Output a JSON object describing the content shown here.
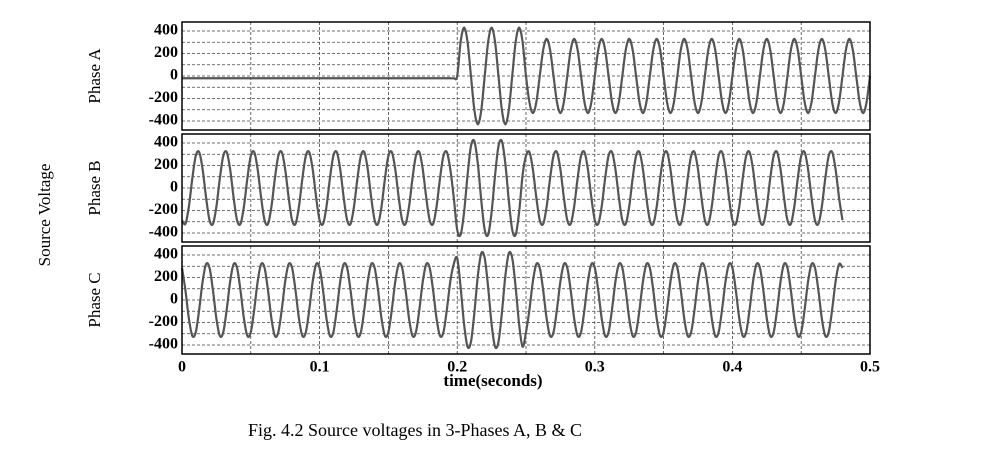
{
  "chart_data": {
    "type": "line",
    "ylabel": "Source Voltage",
    "xlabel": "time(seconds)",
    "caption": "Fig.  4.2 Source voltages in 3-Phases A, B & C",
    "xlim": [
      0,
      0.5
    ],
    "xticks": [
      0,
      0.1,
      0.2,
      0.3,
      0.4,
      0.5
    ],
    "x_minor_ticks": [
      0.05,
      0.15,
      0.25,
      0.35,
      0.45
    ],
    "grid": true,
    "color": "#555555",
    "x": [
      0,
      0.0025,
      0.005,
      0.0075,
      0.01,
      0.0125,
      0.015,
      0.0175,
      0.02,
      0.0225,
      0.025,
      0.0275,
      0.03,
      0.0325,
      0.035,
      0.0375,
      0.04,
      0.0425,
      0.045,
      0.0475,
      0.05,
      0.0525,
      0.055,
      0.0575,
      0.06,
      0.0625,
      0.065,
      0.0675,
      0.07,
      0.0725,
      0.075,
      0.0775,
      0.08,
      0.0825,
      0.085,
      0.0875,
      0.09,
      0.0925,
      0.095,
      0.0975,
      0.1,
      0.1025,
      0.105,
      0.1075,
      0.11,
      0.1125,
      0.115,
      0.1175,
      0.12,
      0.1225,
      0.125,
      0.1275,
      0.13,
      0.1325,
      0.135,
      0.1375,
      0.14,
      0.1425,
      0.145,
      0.1475,
      0.15,
      0.1525,
      0.155,
      0.1575,
      0.16,
      0.1625,
      0.165,
      0.1675,
      0.17,
      0.1725,
      0.175,
      0.1775,
      0.18,
      0.1825,
      0.185,
      0.1875,
      0.19,
      0.1925,
      0.195,
      0.1975,
      0.2,
      0.2025,
      0.205,
      0.2075,
      0.21,
      0.2125,
      0.215,
      0.2175,
      0.22,
      0.2225,
      0.225,
      0.2275,
      0.23,
      0.2325,
      0.235,
      0.2375,
      0.24,
      0.2425,
      0.245,
      0.2475,
      0.25,
      0.2525,
      0.255,
      0.2575,
      0.26,
      0.2625,
      0.265,
      0.2675,
      0.27,
      0.2725,
      0.275,
      0.2775,
      0.28,
      0.2825,
      0.285,
      0.2875,
      0.29,
      0.2925,
      0.295,
      0.2975,
      0.3,
      0.3025,
      0.305,
      0.3075,
      0.31,
      0.3125,
      0.315,
      0.3175,
      0.32,
      0.3225,
      0.325,
      0.3275,
      0.33,
      0.3325,
      0.335,
      0.3375,
      0.34,
      0.3425,
      0.345,
      0.3475,
      0.35,
      0.3525,
      0.355,
      0.3575,
      0.36,
      0.3625,
      0.365,
      0.3675,
      0.37,
      0.3725,
      0.375,
      0.3775,
      0.38,
      0.3825,
      0.385,
      0.3875,
      0.39,
      0.3925,
      0.395,
      0.3975,
      0.4,
      0.4025,
      0.405,
      0.4075,
      0.41,
      0.4125,
      0.415,
      0.4175,
      0.42,
      0.4225,
      0.425,
      0.4275,
      0.43,
      0.4325,
      0.435,
      0.4375,
      0.44,
      0.4425,
      0.445,
      0.4475,
      0.45,
      0.4525,
      0.455,
      0.4575,
      0.46,
      0.4625,
      0.465,
      0.4675,
      0.47,
      0.4725,
      0.475,
      0.4775,
      0.48,
      0.4825,
      0.485,
      0.4875,
      0.49,
      0.4925,
      0.495,
      0.4975,
      0.5
    ],
    "panels": [
      {
        "ylabel": "Phase A",
        "ylim": [
          -480,
          480
        ],
        "yticks": [
          -400,
          -200,
          0,
          200,
          400
        ],
        "y_minor_ticks": [
          -300,
          -100,
          100,
          300
        ],
        "values": [
          -20,
          -20,
          -20,
          -20,
          -20,
          -20,
          -20,
          -20,
          -20,
          -20,
          -20,
          -20,
          -20,
          -20,
          -20,
          -20,
          -20,
          -20,
          -20,
          -20,
          -20,
          -20,
          -20,
          -20,
          -20,
          -20,
          -20,
          -20,
          -20,
          -20,
          -20,
          -20,
          -20,
          -20,
          -20,
          -20,
          -20,
          -20,
          -20,
          -20,
          -20,
          -20,
          -20,
          -20,
          -20,
          -20,
          -20,
          -20,
          -20,
          -20,
          -20,
          -20,
          -20,
          -20,
          -20,
          -20,
          -20,
          -20,
          -20,
          -20,
          -20,
          -20,
          -20,
          -20,
          -20,
          -20,
          -20,
          -20,
          -20,
          -20,
          -20,
          -20,
          -20,
          -20,
          -20,
          -20,
          -20,
          -20,
          -20,
          -20,
          0,
          304,
          430,
          304,
          0,
          -304,
          -430,
          -304,
          0,
          304,
          430,
          304,
          0,
          -304,
          -430,
          -304,
          0,
          304,
          430,
          304,
          0,
          -233,
          -330,
          -233,
          0,
          233,
          330,
          233,
          0,
          -233,
          -330,
          -233,
          0,
          233,
          330,
          233,
          0,
          -233,
          -330,
          -233,
          0,
          233,
          330,
          233,
          0,
          -233,
          -330,
          -233,
          0,
          233,
          330,
          233,
          0,
          -233,
          -330,
          -233,
          0,
          233,
          330,
          233,
          0,
          -233,
          -330,
          -233,
          0,
          233,
          330,
          233,
          0,
          -233,
          -330,
          -233,
          0,
          233,
          330,
          233,
          0,
          -233,
          -330,
          -233,
          0,
          233,
          330,
          233,
          0,
          -233,
          -330,
          -233,
          0,
          233,
          330,
          233,
          0,
          -233,
          -330,
          -233,
          0,
          233,
          330,
          233,
          0,
          -233,
          -330,
          -233,
          0,
          233,
          330,
          233,
          0,
          -233,
          -330,
          -233,
          0,
          233,
          330,
          233,
          0,
          -233,
          -330,
          -233,
          0
        ]
      },
      {
        "ylabel": "Phase B",
        "ylim": [
          -480,
          480
        ],
        "yticks": [
          -400,
          -200,
          0,
          200,
          400
        ],
        "y_minor_ticks": [
          -300,
          -100,
          100,
          300
        ],
        "values": [
          -286,
          -319,
          -165,
          85,
          286,
          319,
          165,
          -85,
          -286,
          -319,
          -165,
          85,
          286,
          319,
          165,
          -85,
          -286,
          -319,
          -165,
          85,
          286,
          319,
          165,
          -85,
          -286,
          -319,
          -165,
          85,
          286,
          319,
          165,
          -85,
          -286,
          -319,
          -165,
          85,
          286,
          319,
          165,
          -85,
          -286,
          -319,
          -165,
          85,
          286,
          319,
          165,
          -85,
          -286,
          -319,
          -165,
          85,
          286,
          319,
          165,
          -85,
          -286,
          -319,
          -165,
          85,
          286,
          319,
          165,
          -85,
          -286,
          -319,
          -165,
          85,
          286,
          319,
          165,
          -85,
          -286,
          -319,
          -165,
          85,
          286,
          319,
          165,
          -85,
          -372,
          -415,
          -215,
          111,
          372,
          415,
          215,
          -111,
          -372,
          -415,
          -215,
          111,
          372,
          415,
          215,
          -111,
          -372,
          -415,
          -215,
          111,
          286,
          319,
          165,
          -85,
          -286,
          -319,
          -165,
          85,
          286,
          319,
          165,
          -85,
          -286,
          -319,
          -165,
          85,
          286,
          319,
          165,
          -85,
          -286,
          -319,
          -165,
          85,
          286,
          319,
          165,
          -85,
          -286,
          -319,
          -165,
          85,
          286,
          319,
          165,
          -85,
          -286,
          -319,
          -165,
          85,
          286,
          319,
          165,
          -85,
          -286,
          -319,
          -165,
          85,
          286,
          319,
          165,
          -85,
          -286,
          -319,
          -165,
          85,
          286,
          319,
          165,
          -85,
          -286,
          -319,
          -165,
          85,
          286,
          319,
          165,
          -85,
          -286,
          -319,
          -165,
          85,
          286,
          319,
          165,
          -85,
          -286,
          -319,
          -165,
          85,
          286,
          319,
          165,
          -85,
          -286,
          -319,
          -165,
          85,
          286,
          319,
          165,
          -85,
          -286
        ]
      },
      {
        "ylabel": "Phase C",
        "ylim": [
          -480,
          480
        ],
        "yticks": [
          -400,
          -200,
          0,
          200,
          400
        ],
        "y_minor_ticks": [
          -300,
          -100,
          100,
          300
        ],
        "values": [
          286,
          85,
          -165,
          -319,
          -286,
          -85,
          165,
          319,
          286,
          85,
          -165,
          -319,
          -286,
          -85,
          165,
          319,
          286,
          85,
          -165,
          -319,
          -286,
          -85,
          165,
          319,
          286,
          85,
          -165,
          -319,
          -286,
          -85,
          165,
          319,
          286,
          85,
          -165,
          -319,
          -286,
          -85,
          165,
          319,
          286,
          85,
          -165,
          -319,
          -286,
          -85,
          165,
          319,
          286,
          85,
          -165,
          -319,
          -286,
          -85,
          165,
          319,
          286,
          85,
          -165,
          -319,
          -286,
          -85,
          165,
          319,
          286,
          85,
          -165,
          -319,
          -286,
          -85,
          165,
          319,
          286,
          85,
          -165,
          -319,
          -286,
          -85,
          165,
          319,
          372,
          111,
          -215,
          -415,
          -372,
          -111,
          215,
          415,
          372,
          111,
          -215,
          -415,
          -372,
          -111,
          215,
          415,
          372,
          111,
          -215,
          -415,
          -286,
          -85,
          165,
          319,
          286,
          85,
          -165,
          -319,
          -286,
          -85,
          165,
          319,
          286,
          85,
          -165,
          -319,
          -286,
          -85,
          165,
          319,
          286,
          85,
          -165,
          -319,
          -286,
          -85,
          165,
          319,
          286,
          85,
          -165,
          -319,
          -286,
          -85,
          165,
          319,
          286,
          85,
          -165,
          -319,
          -286,
          -85,
          165,
          319,
          286,
          85,
          -165,
          -319,
          -286,
          -85,
          165,
          319,
          286,
          85,
          -165,
          -319,
          -286,
          -85,
          165,
          319,
          286,
          85,
          -165,
          -319,
          -286,
          -85,
          165,
          319,
          286,
          85,
          -165,
          -319,
          -286,
          -85,
          165,
          319,
          286,
          85,
          -165,
          -319,
          -286,
          -85,
          165,
          319,
          286,
          85,
          -165,
          -319,
          -286,
          -85,
          165,
          319,
          286
        ]
      }
    ]
  }
}
